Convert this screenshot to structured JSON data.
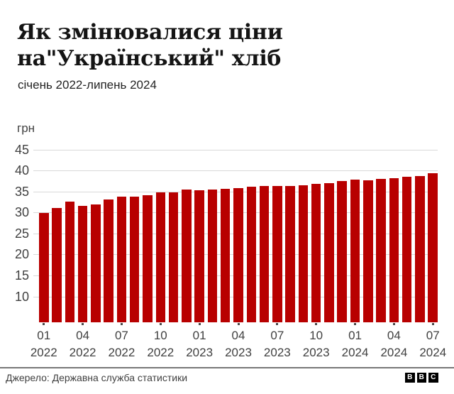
{
  "title": {
    "line1": "Як змінювалися ціни",
    "line2": "на\"Український\" хліб"
  },
  "subtitle": "січень 2022-липень 2024",
  "source": "Джерело: Державна служба статистики",
  "logo": {
    "letters": [
      "B",
      "B",
      "C"
    ]
  },
  "colors": {
    "bar": "#b80000",
    "gridline": "#d9d9d9",
    "axis_text": "#404040",
    "title_text": "#141414",
    "divider": "#777777"
  },
  "chart_data": {
    "type": "bar",
    "title": "Як змінювалися ціни на\"Український\" хліб",
    "subtitle": "січень 2022-липень 2024",
    "unit_label": "грн",
    "ylabel": "грн",
    "xlabel": "",
    "ylim": [
      4,
      47
    ],
    "yticks": [
      45,
      40,
      35,
      30,
      25,
      20,
      15,
      10
    ],
    "grid": "horizontal",
    "legend": "none",
    "x": [
      "01.2022",
      "02.2022",
      "03.2022",
      "04.2022",
      "05.2022",
      "06.2022",
      "07.2022",
      "08.2022",
      "09.2022",
      "10.2022",
      "11.2022",
      "12.2022",
      "01.2023",
      "02.2023",
      "03.2023",
      "04.2023",
      "05.2023",
      "06.2023",
      "07.2023",
      "08.2023",
      "09.2023",
      "10.2023",
      "11.2023",
      "12.2023",
      "01.2024",
      "02.2024",
      "03.2024",
      "04.2024",
      "05.2024",
      "06.2024",
      "07.2024"
    ],
    "values": [
      30.0,
      31.2,
      32.7,
      31.8,
      32.1,
      33.3,
      33.9,
      33.9,
      34.2,
      35.0,
      34.9,
      35.6,
      35.5,
      35.6,
      35.8,
      36.0,
      36.3,
      36.5,
      36.5,
      36.4,
      36.7,
      37.0,
      37.2,
      37.6,
      38.0,
      37.9,
      38.1,
      38.3,
      38.6,
      38.9,
      39.6
    ],
    "xtick_every": 3,
    "xtick_labels": [
      {
        "month": "01",
        "year": "2022"
      },
      {
        "month": "04",
        "year": "2022"
      },
      {
        "month": "07",
        "year": "2022"
      },
      {
        "month": "10",
        "year": "2022"
      },
      {
        "month": "01",
        "year": "2023"
      },
      {
        "month": "04",
        "year": "2023"
      },
      {
        "month": "07",
        "year": "2023"
      },
      {
        "month": "10",
        "year": "2023"
      },
      {
        "month": "01",
        "year": "2024"
      },
      {
        "month": "04",
        "year": "2024"
      },
      {
        "month": "07",
        "year": "2024"
      }
    ],
    "bar_color": "#b80000"
  }
}
